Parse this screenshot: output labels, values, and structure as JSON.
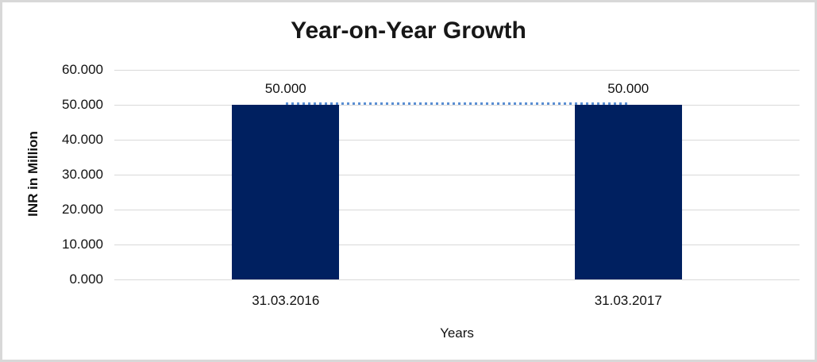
{
  "chart_data": {
    "type": "bar",
    "title": "Year-on-Year Growth",
    "xlabel": "Years",
    "ylabel": "INR in Million",
    "categories": [
      "31.03.2016",
      "31.03.2017"
    ],
    "values": [
      50.0,
      50.0
    ],
    "data_labels": [
      "50.000",
      "50.000"
    ],
    "ylim": [
      0,
      60
    ],
    "ytick_step": 10,
    "ytick_labels": [
      "0.000",
      "10.000",
      "20.000",
      "30.000",
      "40.000",
      "50.000",
      "60.000"
    ],
    "grid": true,
    "legend": false,
    "overlay_line": {
      "type": "line",
      "dash": "square-dot",
      "values": [
        50.0,
        50.0
      ],
      "color": "#5b8fd3"
    },
    "colors": {
      "bar": "#002060",
      "gridline": "#d9d9d9",
      "frame_border": "#d8d8d8",
      "text": "#111111",
      "background": "#ffffff"
    }
  }
}
